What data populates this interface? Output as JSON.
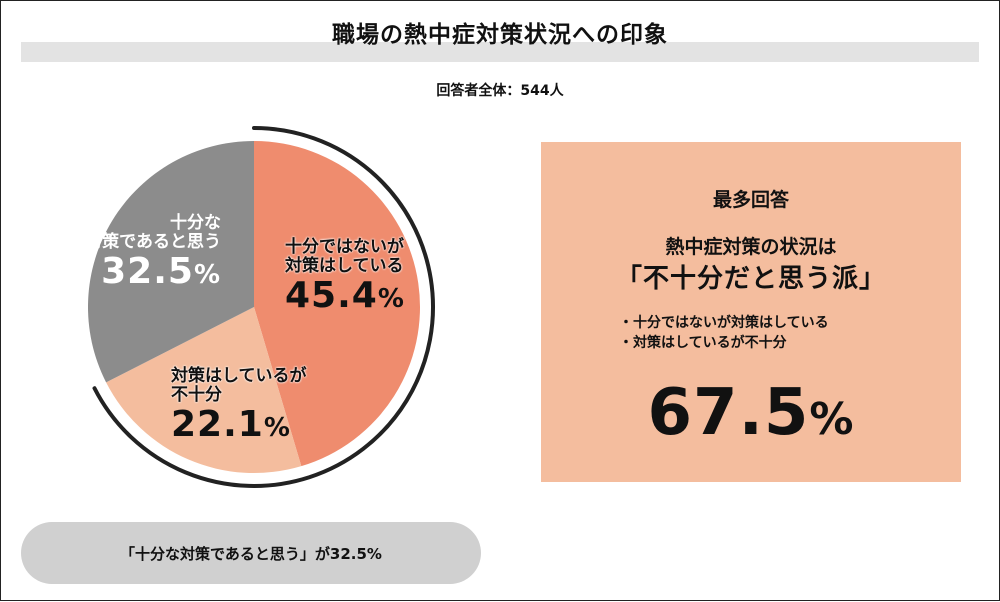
{
  "header": {
    "title": "職場の熱中症対策状況への印象",
    "respondents": "回答者全体：544人"
  },
  "chart_data": {
    "type": "pie",
    "title": "職場の熱中症対策状況への印象",
    "slices": [
      {
        "label": "十分ではないが対策はしている",
        "label_lines": [
          "十分ではないが",
          "対策はしている"
        ],
        "value": 45.4,
        "color": "#ef8c6e"
      },
      {
        "label": "対策はしているが不十分",
        "label_lines": [
          "対策はしているが",
          "不十分"
        ],
        "value": 22.1,
        "color": "#f4bd9e"
      },
      {
        "label": "十分な対策であると思う",
        "label_lines": [
          "十分な",
          "対策であると思う"
        ],
        "value": 32.5,
        "color": "#8c8c8c"
      }
    ],
    "unit": "%",
    "start_angle_deg": 0,
    "direction": "clockwise",
    "highlight_arc": {
      "covers": [
        "十分ではないが対策はしている",
        "対策はしているが不十分"
      ],
      "color": "#222222"
    }
  },
  "pie_labels": {
    "gray": {
      "line1": "十分な",
      "line2": "対策であると思う",
      "value": "32.5",
      "unit": "%"
    },
    "salmon": {
      "line1": "十分ではないが",
      "line2": "対策はしている",
      "value": "45.4",
      "unit": "%"
    },
    "light": {
      "line1": "対策はしているが",
      "line2": "不十分",
      "value": "22.1",
      "unit": "%"
    }
  },
  "summary": {
    "text": "「十分な対策であると思う」が32.5%"
  },
  "top_answer": {
    "heading": "最多回答",
    "line1": "熱中症対策の状況は",
    "line2": "「不十分だと思う派」",
    "items": [
      "十分ではないが対策はしている",
      "対策はしているが不十分"
    ],
    "value": "67.5",
    "unit": "%"
  }
}
